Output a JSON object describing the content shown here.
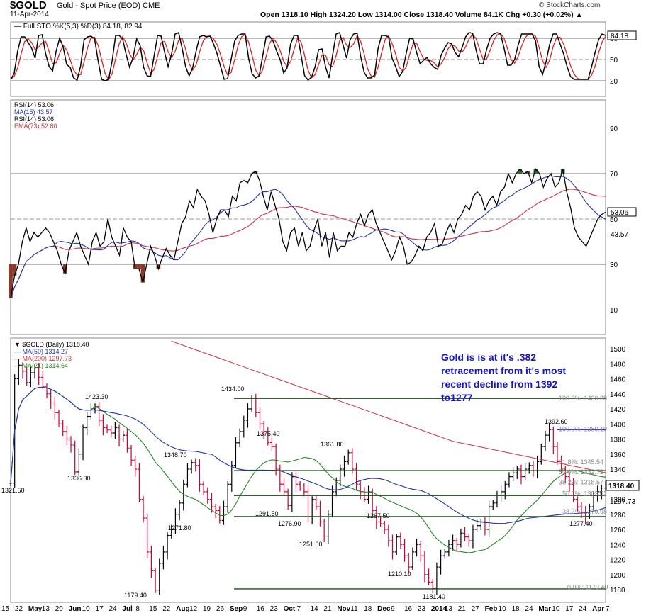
{
  "header": {
    "symbol": "$GOLD",
    "subtitle": "Gold - Spot Price (EOD) CME",
    "date": "11-Apr-2014",
    "ohlc": "Open 1318.10   High 1324.20   Low 1314.00   Close 1318.40   Volume 84.1K   Chg +0.30 (+0.02%) ▲",
    "watermark": "© StockCharts.com"
  },
  "annotation": "Gold is is at it's .382 retracement from it's most recent decline from 1392 to1277",
  "colors": {
    "price_up": "#000000",
    "price_down": "#cc0033",
    "ma50": "#2233aa",
    "ma200": "#cc3344",
    "ma21": "#228822",
    "sto_k": "#000000",
    "sto_d": "#dd2222",
    "annot": "#1515c8",
    "hline": "#1a4a1a",
    "fib_lines": "#1a1acc"
  },
  "chart_data": [
    {
      "type": "line",
      "title": "Full STO %K(5,3) %D(3) 84.18, 82.94",
      "ylim": [
        0,
        100
      ],
      "y_ticks": [
        20,
        50,
        80
      ],
      "ref_lines": [
        20,
        50,
        80
      ],
      "series": [
        {
          "name": "%K(5,3)",
          "last": 84.18
        },
        {
          "name": "%D(3)",
          "last": 82.94
        }
      ],
      "values_k": [
        22,
        30,
        62,
        82,
        82,
        74,
        66,
        52,
        84,
        85,
        58,
        40,
        34,
        62,
        80,
        68,
        43,
        39,
        24,
        21,
        41,
        78,
        82,
        83,
        79,
        48,
        22,
        20,
        22,
        48,
        84,
        84,
        79,
        57,
        39,
        53,
        79,
        70,
        39,
        27,
        26,
        55,
        84,
        83,
        60,
        40,
        58,
        86,
        88,
        66,
        40,
        27,
        38,
        62,
        82,
        84,
        82,
        83,
        72,
        58,
        40,
        22,
        23,
        50,
        76,
        84,
        86,
        86,
        52,
        30,
        24,
        27,
        54,
        82,
        83,
        76,
        62,
        50,
        31,
        38,
        72,
        84,
        84,
        56,
        27,
        21,
        25,
        40,
        64,
        65,
        39,
        24,
        56,
        86,
        88,
        70,
        52,
        78,
        86,
        87,
        55,
        32,
        24,
        24,
        28,
        66,
        84,
        84,
        82,
        52,
        40,
        26,
        33,
        58,
        80,
        79,
        60,
        44,
        49,
        53,
        44,
        39,
        36,
        56,
        66,
        74,
        72,
        60,
        54,
        67,
        82,
        88,
        87,
        63,
        44,
        44,
        64,
        80,
        86,
        88,
        86,
        66,
        42,
        42,
        50,
        70,
        86,
        86,
        86,
        86,
        76,
        40,
        29,
        47,
        71,
        86,
        86,
        72,
        58,
        40,
        26,
        22,
        22,
        22,
        22,
        22,
        40,
        60,
        78,
        86,
        84
      ]
    },
    {
      "type": "line",
      "title": "RSI(14) 53.06",
      "ylim": [
        0,
        100
      ],
      "y_ticks": [
        10,
        30,
        50,
        70,
        90
      ],
      "ref_lines": [
        30,
        70
      ],
      "series": [
        {
          "name": "MA(15)",
          "last": 43.57
        },
        {
          "name": "RSI(14)",
          "last": 53.06
        },
        {
          "name": "EMA(73)",
          "last": 52.8
        }
      ],
      "values": [
        15,
        25,
        30,
        40,
        46,
        40,
        44,
        42,
        44,
        46,
        44,
        40,
        36,
        30,
        26,
        36,
        40,
        44,
        38,
        34,
        30,
        40,
        44,
        38,
        40,
        50,
        42,
        38,
        34,
        46,
        42,
        40,
        28,
        28,
        22,
        30,
        38,
        34,
        28,
        33,
        37,
        34,
        32,
        40,
        48,
        51,
        58,
        55,
        63,
        60,
        58,
        52,
        44,
        50,
        54,
        54,
        51,
        60,
        58,
        66,
        67,
        66,
        70,
        71,
        67,
        60,
        54,
        62,
        56,
        50,
        40,
        36,
        44,
        46,
        38,
        44,
        36,
        38,
        45,
        50,
        38,
        44,
        33,
        44,
        36,
        38,
        38,
        44,
        42,
        48,
        52,
        47,
        52,
        54,
        48,
        44,
        40,
        36,
        32,
        36,
        42,
        38,
        30,
        31,
        34,
        38,
        36,
        42,
        44,
        48,
        38,
        39,
        44,
        48,
        44,
        50,
        52,
        56,
        54,
        60,
        62,
        60,
        54,
        58,
        60,
        56,
        62,
        64,
        70,
        66,
        70,
        72,
        70,
        71,
        66,
        72,
        70,
        64,
        68,
        70,
        64,
        66,
        72,
        62,
        55,
        46,
        42,
        40,
        38,
        42,
        46,
        50,
        52,
        53
      ]
    },
    {
      "type": "line",
      "title": "$GOLD (Daily) 1318.40",
      "ylim": [
        1170,
        1510
      ],
      "y_ticks": [
        1180,
        1200,
        1220,
        1240,
        1260,
        1280,
        1300,
        1320,
        1340,
        1360,
        1380,
        1400,
        1420,
        1440,
        1460,
        1480,
        1500
      ],
      "x_ticks": [
        "15",
        "22",
        "May",
        "13",
        "20",
        "Jun",
        "10",
        "17",
        "24",
        "Jul",
        "8",
        "15",
        "22",
        "Aug",
        "12",
        "19",
        "26",
        "Sep",
        "9",
        "16",
        "23",
        "Oct",
        "7",
        "14",
        "21",
        "Nov",
        "11",
        "18",
        "Dec",
        "9",
        "16",
        "23",
        "2014",
        "13",
        "21",
        "27",
        "Feb",
        "10",
        "18",
        "24",
        "Mar",
        "10",
        "17",
        "24",
        "Apr",
        "7"
      ],
      "series": [
        {
          "name": "MA(50)",
          "last": 1314.27
        },
        {
          "name": "MA(200)",
          "last": 1297.73
        },
        {
          "name": "MA(21)",
          "last": 1314.64
        }
      ],
      "close": [
        1321.5,
        1460,
        1478,
        1470,
        1455,
        1468,
        1475,
        1462,
        1450,
        1440,
        1428,
        1415,
        1400,
        1390,
        1380,
        1372,
        1336.3,
        1360,
        1395,
        1410,
        1420,
        1423.3,
        1405,
        1395,
        1392,
        1388,
        1395,
        1380,
        1385,
        1368,
        1352,
        1340,
        1300,
        1275,
        1230,
        1205,
        1179.4,
        1215,
        1230,
        1252,
        1260,
        1280,
        1295,
        1320,
        1340,
        1348.7,
        1345,
        1320,
        1310,
        1300,
        1290,
        1285,
        1271.8,
        1290,
        1320,
        1345,
        1375,
        1390,
        1405,
        1420,
        1434,
        1415,
        1400,
        1390,
        1375.4,
        1370,
        1340,
        1320,
        1310,
        1291.5,
        1330,
        1320,
        1315,
        1310,
        1276.9,
        1300,
        1290,
        1270,
        1251,
        1280,
        1310,
        1325,
        1340,
        1350,
        1361.8,
        1340,
        1320,
        1310,
        1300,
        1310,
        1285,
        1270,
        1267.5,
        1260,
        1245,
        1230,
        1250,
        1240,
        1225,
        1210.1,
        1230,
        1240,
        1225,
        1200,
        1190,
        1181.4,
        1210,
        1225,
        1230,
        1240,
        1245,
        1240,
        1255,
        1250,
        1245,
        1260,
        1265,
        1270,
        1260,
        1290,
        1295,
        1305,
        1310,
        1320,
        1330,
        1335,
        1340,
        1330,
        1340,
        1345,
        1338,
        1350,
        1370,
        1385,
        1392.6,
        1370,
        1350,
        1340,
        1330,
        1320,
        1300,
        1290,
        1283,
        1277.4,
        1290,
        1305,
        1310,
        1315,
        1318.4
      ],
      "annotations": {
        "price_labels": [
          "1321.50",
          "1423.30",
          "1336.30",
          "1179.40",
          "1348.70",
          "1271.80",
          "1434.00",
          "1375.40",
          "1291.50",
          "1276.90",
          "1251.00",
          "1361.80",
          "1267.50",
          "1210.10",
          "1181.40",
          "1392.60",
          "1277.40"
        ],
        "horizontal_levels": [
          1434,
          1392.6,
          1338,
          1305,
          1277,
          1181
        ],
        "fib_labels": [
          "100.0%: 1430.38",
          "100.0%: 1389.19",
          "61.8%: 1345.54",
          "50.0%: 1332.72",
          "38.2%: 1318.57",
          "50.0%: 1303.62",
          "38.2%: 1279.98",
          "0.0%: 1179.40"
        ],
        "last_price_tags": [
          "1318.40",
          "1297.73"
        ]
      }
    }
  ]
}
